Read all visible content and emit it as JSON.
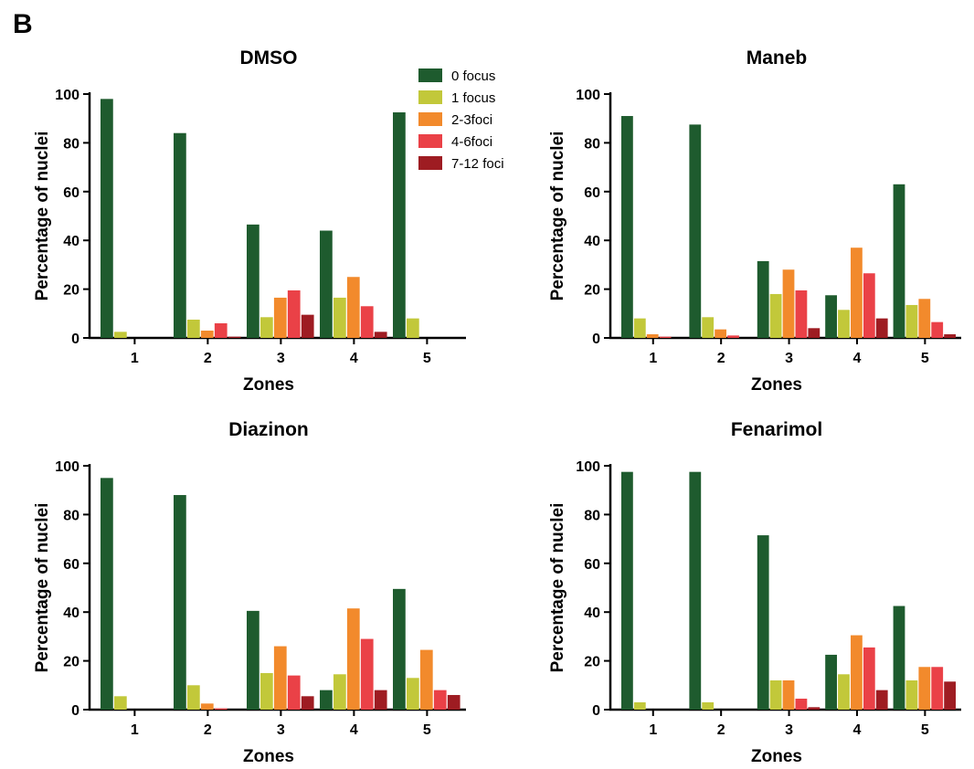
{
  "figure": {
    "panel_label": "B"
  },
  "legend": {
    "entries": [
      {
        "label": "0 focus",
        "color": "#1e5b2e"
      },
      {
        "label": "1 focus",
        "color": "#c2c83a"
      },
      {
        "label": "2-3foci",
        "color": "#f28a2c"
      },
      {
        "label": "4-6foci",
        "color": "#ea4147"
      },
      {
        "label": "7-12 foci",
        "color": "#9e1c22"
      }
    ]
  },
  "chart_data": [
    {
      "type": "bar",
      "title": "DMSO",
      "xlabel": "Zones",
      "ylabel": "Percentage of nuclei",
      "categories": [
        "1",
        "2",
        "3",
        "4",
        "5"
      ],
      "ylim": [
        0,
        100
      ],
      "yticks": [
        "0",
        "20",
        "40",
        "60",
        "80",
        "100"
      ],
      "series": [
        {
          "name": "0 focus",
          "values": [
            98,
            84,
            46.5,
            44,
            92.5
          ]
        },
        {
          "name": "1 focus",
          "values": [
            2.5,
            7.5,
            8.5,
            16.5,
            8
          ]
        },
        {
          "name": "2-3foci",
          "values": [
            0,
            3,
            16.5,
            25,
            0
          ]
        },
        {
          "name": "4-6foci",
          "values": [
            0,
            6,
            19.5,
            13,
            0
          ]
        },
        {
          "name": "7-12 foci",
          "values": [
            0,
            0.5,
            9.5,
            2.5,
            0
          ]
        }
      ]
    },
    {
      "type": "bar",
      "title": "Maneb",
      "xlabel": "Zones",
      "ylabel": "Percentage of nuclei",
      "categories": [
        "1",
        "2",
        "3",
        "4",
        "5"
      ],
      "ylim": [
        0,
        100
      ],
      "yticks": [
        "0",
        "20",
        "40",
        "60",
        "80",
        "100"
      ],
      "series": [
        {
          "name": "0 focus",
          "values": [
            91,
            87.5,
            31.5,
            17.5,
            63
          ]
        },
        {
          "name": "1 focus",
          "values": [
            8,
            8.5,
            18,
            11.5,
            13.5
          ]
        },
        {
          "name": "2-3foci",
          "values": [
            1.5,
            3.5,
            28,
            37,
            16
          ]
        },
        {
          "name": "4-6foci",
          "values": [
            0.5,
            1,
            19.5,
            26.5,
            6.5
          ]
        },
        {
          "name": "7-12 foci",
          "values": [
            0,
            0,
            4,
            8,
            1.5
          ]
        }
      ]
    },
    {
      "type": "bar",
      "title": "Diazinon",
      "xlabel": "Zones",
      "ylabel": "Percentage of nuclei",
      "categories": [
        "1",
        "2",
        "3",
        "4",
        "5"
      ],
      "ylim": [
        0,
        100
      ],
      "yticks": [
        "0",
        "20",
        "40",
        "60",
        "80",
        "100"
      ],
      "series": [
        {
          "name": "0 focus",
          "values": [
            95,
            88,
            40.5,
            8,
            49.5
          ]
        },
        {
          "name": "1 focus",
          "values": [
            5.5,
            10,
            15,
            14.5,
            13
          ]
        },
        {
          "name": "2-3foci",
          "values": [
            0,
            2.5,
            26,
            41.5,
            24.5
          ]
        },
        {
          "name": "4-6foci",
          "values": [
            0,
            0.5,
            14,
            29,
            8
          ]
        },
        {
          "name": "7-12 foci",
          "values": [
            0,
            0,
            5.5,
            8,
            6
          ]
        }
      ]
    },
    {
      "type": "bar",
      "title": "Fenarimol",
      "xlabel": "Zones",
      "ylabel": "Percentage of nuclei",
      "categories": [
        "1",
        "2",
        "3",
        "4",
        "5"
      ],
      "ylim": [
        0,
        100
      ],
      "yticks": [
        "0",
        "20",
        "40",
        "60",
        "80",
        "100"
      ],
      "series": [
        {
          "name": "0 focus",
          "values": [
            97.5,
            97.5,
            71.5,
            22.5,
            42.5
          ]
        },
        {
          "name": "1 focus",
          "values": [
            3,
            3,
            12,
            14.5,
            12
          ]
        },
        {
          "name": "2-3foci",
          "values": [
            0,
            0,
            12,
            30.5,
            17.5
          ]
        },
        {
          "name": "4-6foci",
          "values": [
            0,
            0,
            4.5,
            25.5,
            17.5
          ]
        },
        {
          "name": "7-12 foci",
          "values": [
            0,
            0,
            1,
            8,
            11.5
          ]
        }
      ]
    }
  ]
}
